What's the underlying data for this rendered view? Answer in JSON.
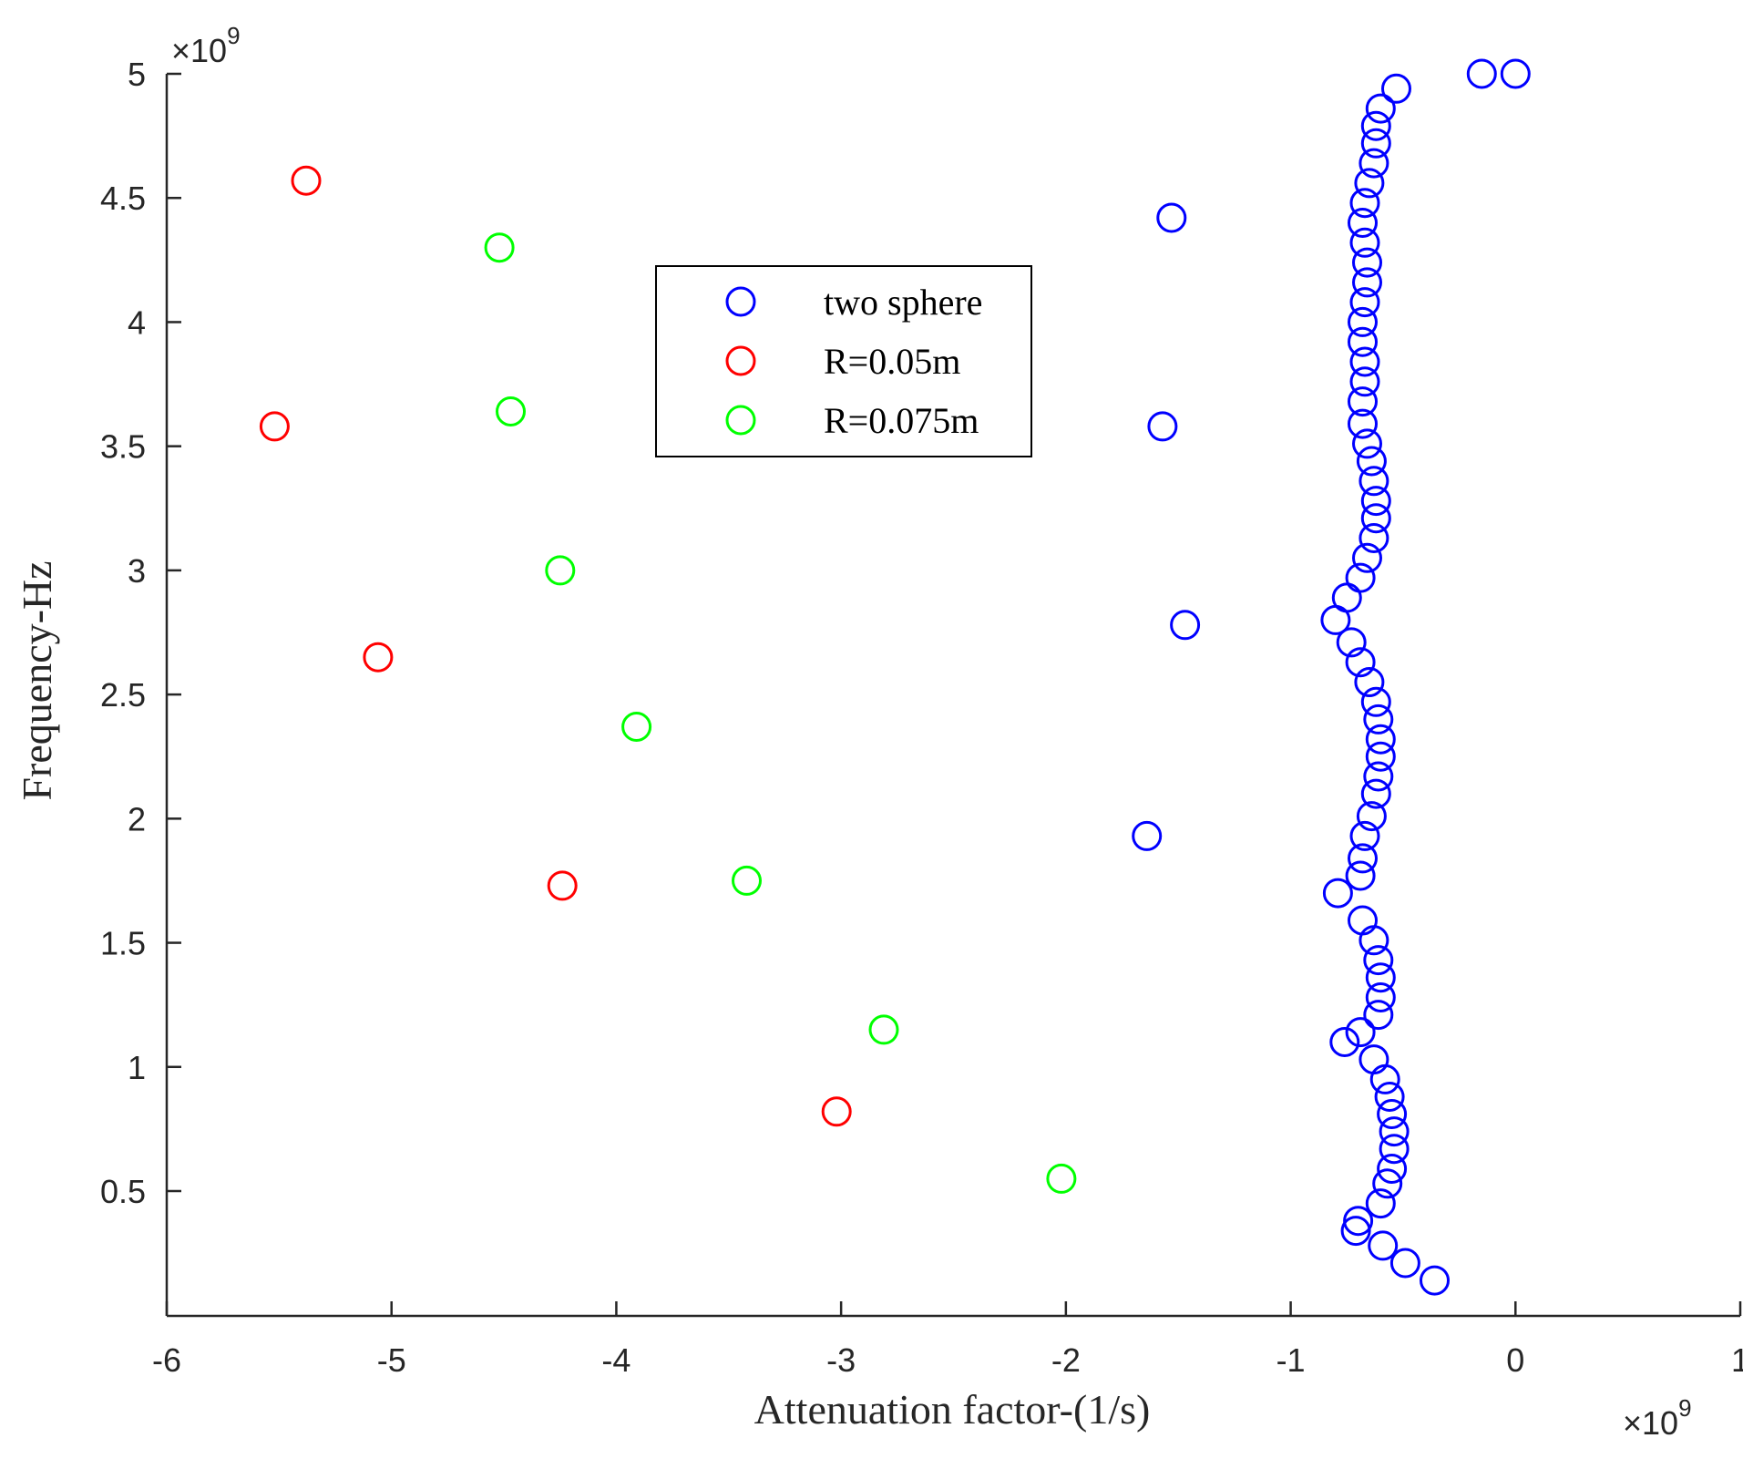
{
  "chart_data": {
    "type": "scatter",
    "title": "",
    "xlabel": "Attenuation factor-(1/s)",
    "ylabel": "Frequency-Hz",
    "xlim": [
      -6,
      1
    ],
    "ylim": [
      0.1,
      5
    ],
    "x_ticks": [
      -6,
      -5,
      -4,
      -3,
      -2,
      -1,
      0,
      1
    ],
    "x_tick_labels": [
      "-6",
      "-5",
      "-4",
      "-3",
      "-2",
      "-1",
      "0",
      "1"
    ],
    "y_ticks": [
      0.5,
      1,
      1.5,
      2,
      2.5,
      3,
      3.5,
      4,
      4.5,
      5
    ],
    "y_tick_labels": [
      "0.5",
      "1",
      "1.5",
      "2",
      "2.5",
      "3",
      "3.5",
      "4",
      "4.5",
      "5"
    ],
    "x_exponent": {
      "base": "×10",
      "power": "9"
    },
    "y_exponent": {
      "base": "×10",
      "power": "9"
    },
    "marker": "open-circle",
    "legend_position": "upper-center",
    "series": [
      {
        "name": "two sphere",
        "color": "#0000ff",
        "points": [
          [
            -0.36,
            0.14
          ],
          [
            -0.49,
            0.21
          ],
          [
            -0.59,
            0.28
          ],
          [
            -0.71,
            0.34
          ],
          [
            -0.7,
            0.38
          ],
          [
            -0.6,
            0.45
          ],
          [
            -0.57,
            0.53
          ],
          [
            -0.55,
            0.59
          ],
          [
            -0.54,
            0.67
          ],
          [
            -0.54,
            0.74
          ],
          [
            -0.55,
            0.81
          ],
          [
            -0.56,
            0.88
          ],
          [
            -0.58,
            0.95
          ],
          [
            -0.63,
            1.03
          ],
          [
            -0.76,
            1.1
          ],
          [
            -0.69,
            1.14
          ],
          [
            -0.61,
            1.21
          ],
          [
            -0.6,
            1.28
          ],
          [
            -0.6,
            1.36
          ],
          [
            -0.61,
            1.43
          ],
          [
            -0.63,
            1.51
          ],
          [
            -0.68,
            1.59
          ],
          [
            -0.79,
            1.7
          ],
          [
            -0.69,
            1.77
          ],
          [
            -0.68,
            1.84
          ],
          [
            -0.67,
            1.93
          ],
          [
            -0.64,
            2.01
          ],
          [
            -0.62,
            2.1
          ],
          [
            -0.61,
            2.17
          ],
          [
            -0.6,
            2.25
          ],
          [
            -0.6,
            2.32
          ],
          [
            -0.61,
            2.4
          ],
          [
            -0.62,
            2.47
          ],
          [
            -0.65,
            2.55
          ],
          [
            -0.69,
            2.63
          ],
          [
            -0.73,
            2.71
          ],
          [
            -0.8,
            2.8
          ],
          [
            -0.75,
            2.89
          ],
          [
            -0.69,
            2.97
          ],
          [
            -0.66,
            3.05
          ],
          [
            -0.63,
            3.13
          ],
          [
            -0.62,
            3.21
          ],
          [
            -0.62,
            3.28
          ],
          [
            -0.63,
            3.36
          ],
          [
            -0.64,
            3.44
          ],
          [
            -0.66,
            3.51
          ],
          [
            -0.68,
            3.59
          ],
          [
            -0.68,
            3.68
          ],
          [
            -0.67,
            3.76
          ],
          [
            -0.67,
            3.84
          ],
          [
            -0.68,
            3.92
          ],
          [
            -0.68,
            4.0
          ],
          [
            -0.67,
            4.08
          ],
          [
            -0.66,
            4.16
          ],
          [
            -0.66,
            4.24
          ],
          [
            -0.67,
            4.32
          ],
          [
            -0.68,
            4.4
          ],
          [
            -0.67,
            4.48
          ],
          [
            -0.65,
            4.56
          ],
          [
            -0.63,
            4.64
          ],
          [
            -0.62,
            4.72
          ],
          [
            -0.62,
            4.79
          ],
          [
            -0.6,
            4.86
          ],
          [
            -0.53,
            4.94
          ],
          [
            -0.15,
            5.0
          ],
          [
            0.0,
            5.0
          ],
          [
            -1.53,
            4.42
          ],
          [
            -1.57,
            3.58
          ],
          [
            -1.47,
            2.78
          ],
          [
            -1.64,
            1.93
          ]
        ]
      },
      {
        "name": "R=0.05m",
        "color": "#ff0000",
        "points": [
          [
            -5.38,
            4.57
          ],
          [
            -5.52,
            3.58
          ],
          [
            -5.06,
            2.65
          ],
          [
            -4.24,
            1.73
          ],
          [
            -3.02,
            0.82
          ]
        ]
      },
      {
        "name": "R=0.075m",
        "color": "#00ff00",
        "points": [
          [
            -4.52,
            4.3
          ],
          [
            -4.47,
            3.64
          ],
          [
            -4.25,
            3.0
          ],
          [
            -3.91,
            2.37
          ],
          [
            -3.42,
            1.75
          ],
          [
            -2.81,
            1.15
          ],
          [
            -2.02,
            0.55
          ]
        ]
      }
    ]
  }
}
